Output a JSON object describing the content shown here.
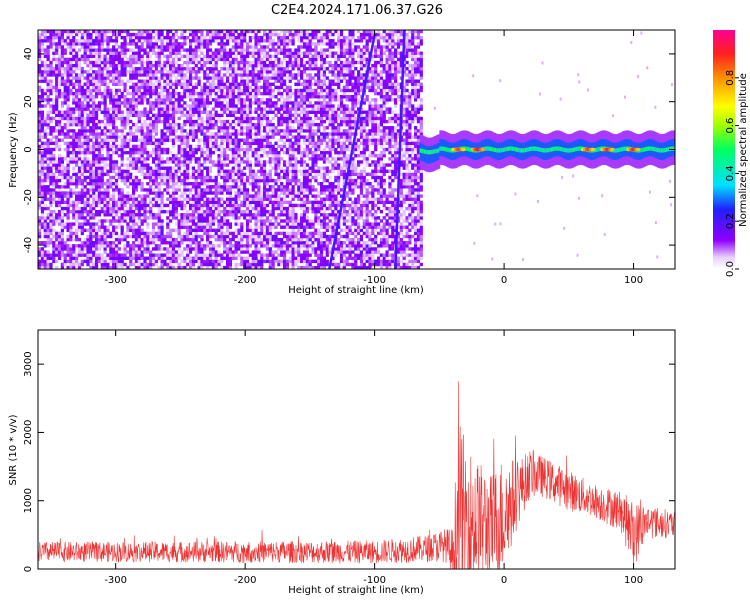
{
  "figure": {
    "title": "C2E4.2024.171.06.37.G26"
  },
  "chart_data": [
    {
      "type": "heatmap",
      "xlabel": "Height of straight line (km)",
      "ylabel": "Frequency (Hz)",
      "xlim": [
        -360,
        132
      ],
      "ylim": [
        -50,
        50
      ],
      "xticks": [
        -300,
        -200,
        -100,
        0,
        100
      ],
      "yticks": [
        -40,
        -20,
        0,
        20,
        40
      ],
      "noise_region_x": [
        -360,
        -65
      ],
      "carrier": {
        "x_start": -65,
        "x_end": 132,
        "frequency": 0,
        "width": 4
      },
      "slanted_streaks": [
        {
          "x_top": -100,
          "y_top": 48,
          "x_bottom": -135,
          "y_bottom": -50
        },
        {
          "x_top": -77,
          "y_top": 50,
          "x_bottom": -84,
          "y_bottom": -50
        }
      ],
      "peaks": [
        {
          "x": -35,
          "amplitude": 0.9
        },
        {
          "x": -20,
          "amplitude": 0.95
        },
        {
          "x": 65,
          "amplitude": 0.9
        },
        {
          "x": 80,
          "amplitude": 0.92
        },
        {
          "x": 100,
          "amplitude": 0.92
        }
      ],
      "colorbar": {
        "label": "Normalized spectral amplitude",
        "range": [
          0.0,
          1.0
        ],
        "ticks": [
          "0.0",
          "0.2",
          "0.4",
          "0.6",
          "0.8"
        ],
        "colors": [
          "#ffffff",
          "#e8ccff",
          "#9000ff",
          "#2020ff",
          "#00e0ff",
          "#00ff60",
          "#a0ff00",
          "#ffff00",
          "#ff9000",
          "#ff2020",
          "#ff0090"
        ]
      }
    },
    {
      "type": "line",
      "xlabel": "Height of straight line (km)",
      "ylabel": "SNR (10 * v/v)",
      "xlim": [
        -360,
        132
      ],
      "ylim": [
        0,
        3500
      ],
      "xticks": [
        -300,
        -200,
        -100,
        0,
        100
      ],
      "yticks": [
        0,
        1000,
        2000,
        3000
      ],
      "color": "#ee3333",
      "envelope": {
        "x": [
          -360,
          -300,
          -200,
          -100,
          -60,
          -45,
          -40,
          -35,
          -30,
          -20,
          -10,
          0,
          10,
          20,
          30,
          50,
          70,
          90,
          100,
          110,
          132
        ],
        "base": [
          250,
          250,
          250,
          250,
          300,
          350,
          200,
          800,
          700,
          700,
          600,
          800,
          1100,
          1400,
          1350,
          1150,
          1000,
          850,
          500,
          700,
          650
        ],
        "amp": [
          150,
          150,
          160,
          170,
          200,
          250,
          400,
          1400,
          1200,
          900,
          800,
          900,
          500,
          350,
          300,
          300,
          250,
          300,
          500,
          250,
          200
        ]
      }
    }
  ]
}
